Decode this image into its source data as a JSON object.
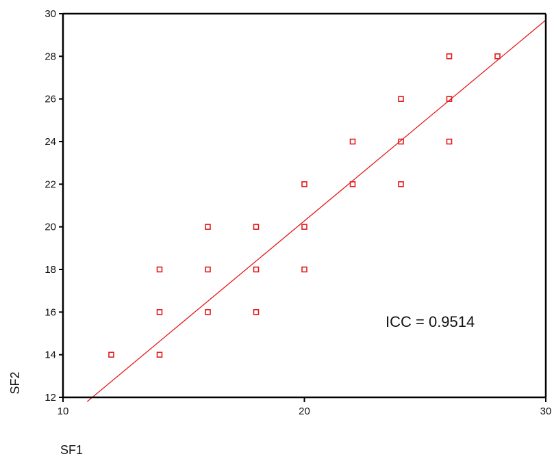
{
  "chart_data": {
    "type": "scatter",
    "title": "",
    "xlabel": "SF1",
    "ylabel": "SF2",
    "xlim": [
      10,
      30
    ],
    "ylim": [
      12,
      30
    ],
    "xticks": [
      10,
      20,
      30
    ],
    "yticks": [
      12,
      14,
      16,
      18,
      20,
      22,
      24,
      26,
      28,
      30
    ],
    "grid": false,
    "annotation": "ICC = 0.9514",
    "colors": {
      "points": "#e31a1c",
      "fit_line": "#e31a1c",
      "axes": "#000000"
    },
    "points": [
      {
        "x": 12,
        "y": 14
      },
      {
        "x": 14,
        "y": 14
      },
      {
        "x": 14,
        "y": 16
      },
      {
        "x": 14,
        "y": 18
      },
      {
        "x": 16,
        "y": 16
      },
      {
        "x": 16,
        "y": 18
      },
      {
        "x": 16,
        "y": 20
      },
      {
        "x": 18,
        "y": 16
      },
      {
        "x": 18,
        "y": 18
      },
      {
        "x": 18,
        "y": 20
      },
      {
        "x": 20,
        "y": 18
      },
      {
        "x": 20,
        "y": 20
      },
      {
        "x": 20,
        "y": 22
      },
      {
        "x": 22,
        "y": 22
      },
      {
        "x": 22,
        "y": 24
      },
      {
        "x": 24,
        "y": 22
      },
      {
        "x": 24,
        "y": 24
      },
      {
        "x": 24,
        "y": 26
      },
      {
        "x": 26,
        "y": 24
      },
      {
        "x": 26,
        "y": 26
      },
      {
        "x": 26,
        "y": 28
      },
      {
        "x": 28,
        "y": 28
      }
    ],
    "fit_line": {
      "x1": 11,
      "y1": 11.8,
      "x2": 30,
      "y2": 29.7
    }
  }
}
